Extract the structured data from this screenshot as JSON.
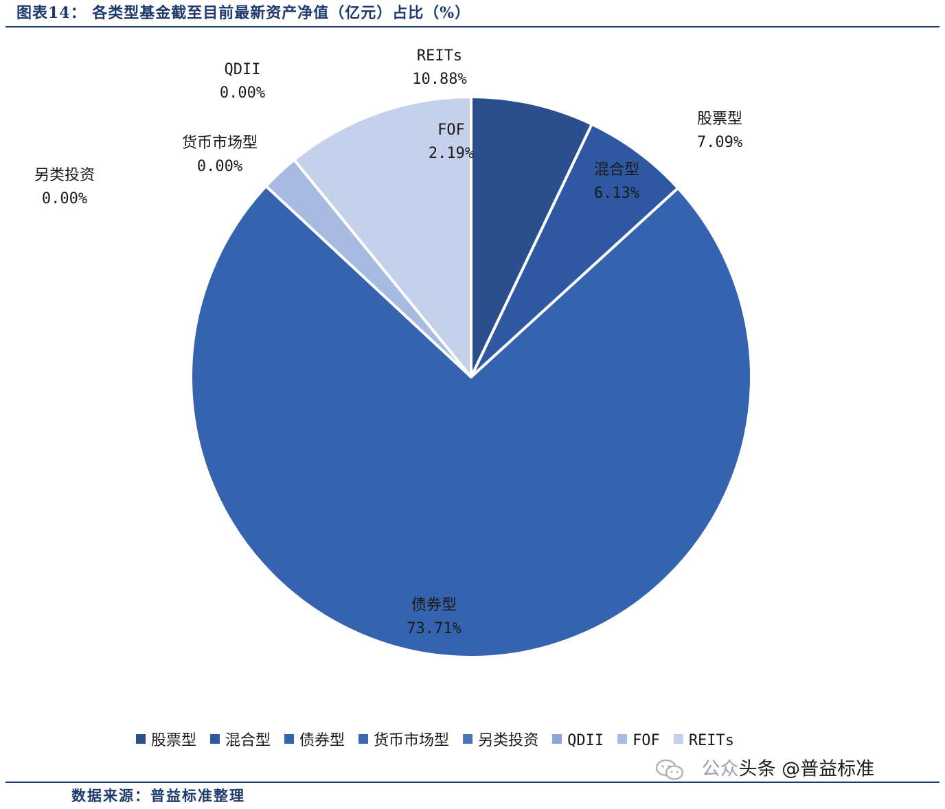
{
  "title": "图表14：  各类型基金截至目前最新资产净值（亿元）占比（%）",
  "source": "数据来源：普益标准整理",
  "watermark": {
    "icon": "wechat-icon",
    "gray_text": "公众",
    "dark_text": "头条 @普益标准"
  },
  "chart_data": {
    "type": "pie",
    "title": "",
    "legend_position": "bottom",
    "slices": [
      {
        "name": "股票型",
        "value": 7.09,
        "label": "7.09%",
        "color": "#2b4f8c"
      },
      {
        "name": "混合型",
        "value": 6.13,
        "label": "6.13%",
        "color": "#2f58a2"
      },
      {
        "name": "债券型",
        "value": 73.71,
        "label": "73.71%",
        "color": "#3563b0"
      },
      {
        "name": "货币市场型",
        "value": 0.0,
        "label": "0.00%",
        "color": "#3a68b4"
      },
      {
        "name": "另类投资",
        "value": 0.0,
        "label": "0.00%",
        "color": "#4a74bb"
      },
      {
        "name": "QDII",
        "value": 0.0,
        "label": "0.00%",
        "color": "#8ea6d4"
      },
      {
        "name": "FOF",
        "value": 2.19,
        "label": "2.19%",
        "color": "#a7bbe0"
      },
      {
        "name": "REITs",
        "value": 10.88,
        "label": "10.88%",
        "color": "#c5d1ea"
      }
    ]
  }
}
